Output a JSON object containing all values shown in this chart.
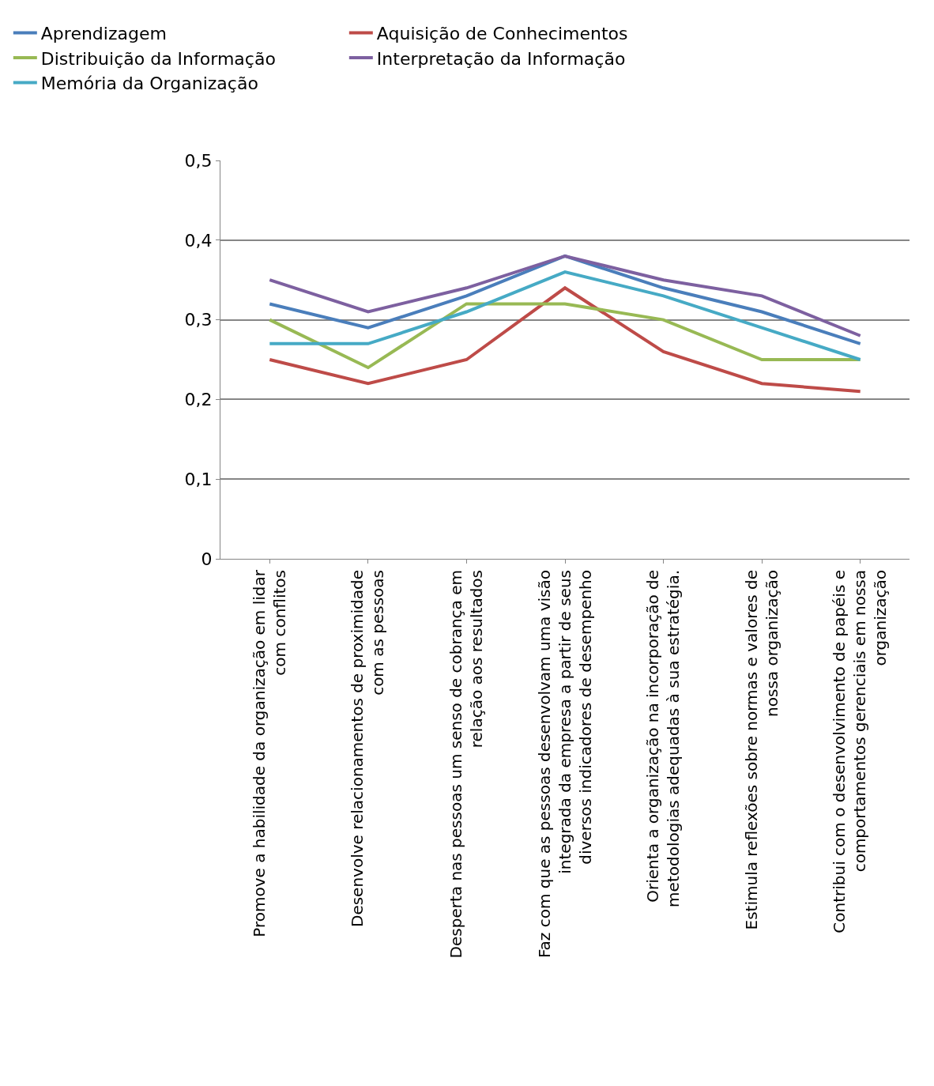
{
  "chart_data": {
    "type": "line",
    "categories": [
      "Promove a habilidade da organização em lidar com conflitos",
      "Desenvolve relacionamentos de proximidade com as pessoas",
      "Desperta nas pessoas um senso de cobrança em relação aos resultados",
      "Faz com que as pessoas desenvolvam uma visão integrada da empresa a partir de seus diversos indicadores de desempenho",
      "Orienta a organização na incorporação de metodologias adequadas à sua estratégia.",
      "Estimula reflexões sobre normas e valores de nossa organização",
      "Contribui com o desenvolvimento de papéis e comportamentos gerenciais em nossa organização"
    ],
    "series": [
      {
        "name": "Aprendizagem",
        "color": "#4a7ebb",
        "values": [
          0.32,
          0.29,
          0.33,
          0.38,
          0.34,
          0.31,
          0.27
        ]
      },
      {
        "name": "Aquisição de Conhecimentos",
        "color": "#be4b48",
        "values": [
          0.25,
          0.22,
          0.25,
          0.34,
          0.26,
          0.22,
          0.21
        ]
      },
      {
        "name": "Distribuição da Informação",
        "color": "#98b954",
        "values": [
          0.3,
          0.24,
          0.32,
          0.32,
          0.3,
          0.25,
          0.25
        ]
      },
      {
        "name": "Interpretação da Informação",
        "color": "#7d60a0",
        "values": [
          0.35,
          0.31,
          0.34,
          0.38,
          0.35,
          0.33,
          0.28
        ]
      },
      {
        "name": "Memória da Organização",
        "color": "#46aac5",
        "values": [
          0.27,
          0.27,
          0.31,
          0.36,
          0.33,
          0.29,
          0.25
        ]
      }
    ],
    "ylim": [
      0,
      0.5
    ],
    "yticks": [
      {
        "value": 0,
        "label": "0"
      },
      {
        "value": 0.1,
        "label": "0,1"
      },
      {
        "value": 0.2,
        "label": "0,2"
      },
      {
        "value": 0.3,
        "label": "0,3"
      },
      {
        "value": 0.4,
        "label": "0,4"
      },
      {
        "value": 0.5,
        "label": "0,5"
      }
    ],
    "grid": "y",
    "legend": "top",
    "marker": "none",
    "line_style": "solid"
  }
}
